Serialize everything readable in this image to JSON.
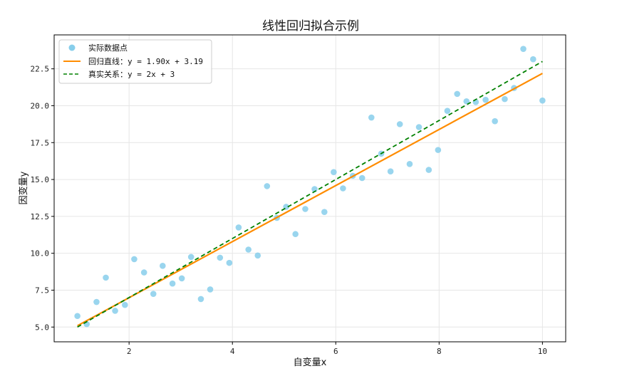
{
  "chart_data": {
    "type": "scatter",
    "title": "线性回归拟合示例",
    "xlabel": "自变量x",
    "ylabel": "因变量y",
    "xlim": [
      0.55,
      10.45
    ],
    "ylim": [
      4.0,
      24.8
    ],
    "xticks": [
      2,
      4,
      6,
      8,
      10
    ],
    "yticks": [
      5.0,
      7.5,
      10.0,
      12.5,
      15.0,
      17.5,
      20.0,
      22.5
    ],
    "xtick_labels": [
      "2",
      "4",
      "6",
      "8",
      "10"
    ],
    "ytick_labels": [
      "5.0",
      "7.5",
      "10.0",
      "12.5",
      "15.0",
      "17.5",
      "20.0",
      "22.5"
    ],
    "grid": true,
    "legend_position": "top-left",
    "series": [
      {
        "name": "实际数据点",
        "kind": "scatter",
        "color": "#87CEEB",
        "x": [
          1.0,
          1.18,
          1.37,
          1.55,
          1.73,
          1.92,
          2.1,
          2.29,
          2.47,
          2.65,
          2.84,
          3.02,
          3.2,
          3.39,
          3.57,
          3.76,
          3.94,
          4.12,
          4.31,
          4.49,
          4.67,
          4.86,
          5.04,
          5.22,
          5.41,
          5.59,
          5.78,
          5.96,
          6.14,
          6.33,
          6.51,
          6.69,
          6.88,
          7.06,
          7.24,
          7.43,
          7.61,
          7.8,
          7.98,
          8.16,
          8.35,
          8.53,
          8.71,
          8.9,
          9.08,
          9.27,
          9.45,
          9.63,
          9.82,
          10.0
        ],
        "y": [
          5.75,
          5.2,
          6.7,
          8.35,
          6.1,
          6.5,
          9.6,
          8.7,
          7.25,
          9.15,
          7.95,
          8.3,
          9.75,
          6.9,
          7.55,
          9.7,
          9.35,
          11.75,
          10.25,
          9.85,
          14.55,
          12.4,
          13.15,
          11.3,
          13.0,
          14.35,
          12.8,
          15.5,
          14.4,
          15.25,
          15.1,
          19.2,
          16.75,
          15.55,
          18.75,
          16.05,
          18.55,
          15.65,
          17.0,
          19.65,
          20.8,
          20.3,
          20.25,
          20.4,
          18.95,
          20.45,
          21.2,
          23.85,
          23.15,
          20.35
        ]
      },
      {
        "name": "回归直线：y = 1.90x + 3.19",
        "kind": "line",
        "style": "solid",
        "color": "#FF8C00",
        "x": [
          1.0,
          10.0
        ],
        "y": [
          5.09,
          22.19
        ]
      },
      {
        "name": "真实关系：y = 2x + 3",
        "kind": "line",
        "style": "dashed",
        "color": "#008000",
        "x": [
          1.0,
          10.0
        ],
        "y": [
          5.0,
          23.0
        ]
      }
    ]
  }
}
